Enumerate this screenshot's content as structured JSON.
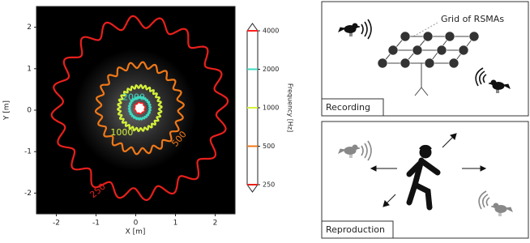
{
  "chart_data": {
    "type": "contour",
    "xlabel": "X [m]",
    "ylabel": "Y [m]",
    "xlim": [
      -2.5,
      2.5
    ],
    "ylim": [
      -2.5,
      2.5
    ],
    "xticks": [
      -2,
      -1,
      0,
      1,
      2
    ],
    "yticks": [
      -2,
      -1,
      0,
      1,
      2
    ],
    "colorbar": {
      "label": "Frequency [Hz]",
      "scale": "log",
      "ticks": [
        250,
        500,
        1000,
        2000,
        4000
      ]
    },
    "contours": [
      {
        "level": 250,
        "color": "#e8201c",
        "label": "250"
      },
      {
        "level": 500,
        "color": "#f07818",
        "label": "500"
      },
      {
        "level": 1000,
        "color": "#d6f23a",
        "label": "1000"
      },
      {
        "level": 2000,
        "color": "#3cd8c0",
        "label": "2000"
      },
      {
        "level": 4000,
        "color": "#ff2020"
      }
    ]
  },
  "panels": [
    {
      "label": "Recording",
      "annotation": "Grid of RSMAs"
    },
    {
      "label": "Reproduction"
    }
  ]
}
